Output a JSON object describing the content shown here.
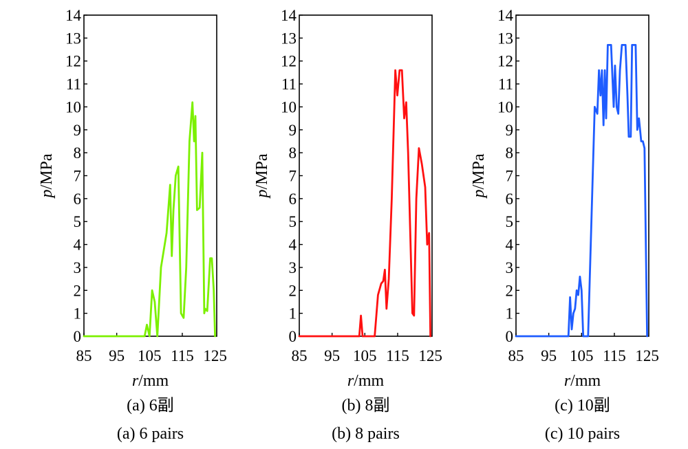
{
  "chart_data": [
    {
      "type": "line",
      "series": [
        {
          "color": "#7cf000",
          "x": [
            85,
            99,
            103.5,
            104.2,
            105,
            105.8,
            106.6,
            107.4,
            108.5,
            110.2,
            111.3,
            111.8,
            112.3,
            113,
            113.8,
            114.6,
            115.4,
            116.2,
            117.2,
            118.1,
            118.6,
            119,
            119.5,
            120.3,
            121.1,
            121.7,
            122,
            122.6,
            123.5,
            124,
            124.6,
            125
          ],
          "y": [
            0,
            0,
            0,
            0.5,
            0,
            2,
            1.5,
            0,
            3,
            4.5,
            6.6,
            3.5,
            5.5,
            7,
            7.4,
            1,
            0.8,
            3,
            8.5,
            10.2,
            8.5,
            9.6,
            5.5,
            5.6,
            8,
            1,
            1.2,
            1.1,
            3.4,
            3.4,
            2,
            0
          ]
        }
      ],
      "xticks": [
        "85",
        "95",
        "105",
        "115",
        "125"
      ],
      "yticks": [
        "0",
        "1",
        "2",
        "3",
        "4",
        "5",
        "6",
        "7",
        "8",
        "9",
        "10",
        "11",
        "12",
        "13",
        "14"
      ],
      "xlim": [
        85,
        125.5
      ],
      "ylim": [
        0,
        14
      ],
      "xlabel_italic": "r",
      "xlabel_unit": "/mm",
      "ylabel_italic": "p",
      "ylabel_unit": "/MPa",
      "caption_cn": "(a) 6副",
      "caption_en": "(a) 6 pairs"
    },
    {
      "type": "line",
      "series": [
        {
          "color": "#ff1010",
          "x": [
            85,
            100,
            103.3,
            103.8,
            104.3,
            105.5,
            106.4,
            108,
            109,
            110,
            110.6,
            111.1,
            111.6,
            112.3,
            113.2,
            114.3,
            114.9,
            115.6,
            116.3,
            117,
            117.6,
            118.2,
            119.5,
            120,
            120.7,
            121.5,
            122.4,
            123.4,
            124,
            124.6,
            125
          ],
          "y": [
            0,
            0,
            0,
            0.9,
            0,
            0,
            0,
            0,
            1.8,
            2.3,
            2.4,
            2.9,
            1.2,
            2.5,
            6,
            11.6,
            10.5,
            11.6,
            11.6,
            9.5,
            10.2,
            8,
            1,
            0.9,
            6,
            8.2,
            7.5,
            6.5,
            4,
            4.5,
            0
          ]
        }
      ],
      "xticks": [
        "85",
        "95",
        "105",
        "115",
        "125"
      ],
      "yticks": [
        "0",
        "1",
        "2",
        "3",
        "4",
        "5",
        "6",
        "7",
        "8",
        "9",
        "10",
        "11",
        "12",
        "13",
        "14"
      ],
      "xlim": [
        85,
        125.5
      ],
      "ylim": [
        0,
        14
      ],
      "xlabel_italic": "r",
      "xlabel_unit": "/mm",
      "ylabel_italic": "p",
      "ylabel_unit": "/MPa",
      "caption_cn": "(b) 8副",
      "caption_en": "(b) 8 pairs"
    },
    {
      "type": "line",
      "series": [
        {
          "color": "#1e5cff",
          "x": [
            85,
            98,
            100.5,
            101,
            101.5,
            102,
            102.5,
            103,
            103.5,
            104,
            104.5,
            105,
            105.5,
            106,
            106.5,
            107,
            108,
            109,
            109.8,
            110.3,
            110.8,
            111.2,
            111.7,
            112.1,
            112.5,
            113,
            113.5,
            114,
            114.8,
            115.2,
            115.7,
            116.2,
            116.7,
            117.3,
            117.8,
            118.4,
            119,
            119.4,
            120,
            120.4,
            121,
            121.5,
            122,
            122.5,
            123.2,
            123.7,
            124.2,
            124.7,
            125
          ],
          "y": [
            0,
            0,
            0,
            0,
            1.7,
            0.3,
            1,
            1.2,
            2,
            1.8,
            2.6,
            2,
            0,
            0,
            0,
            0,
            5,
            10,
            9.7,
            11.6,
            10.5,
            11.6,
            9.2,
            11.6,
            9.5,
            12.7,
            12.7,
            12.7,
            10,
            11.8,
            10,
            9.7,
            11.6,
            12.7,
            12.7,
            12.7,
            10.5,
            8.7,
            8.7,
            12.7,
            12.7,
            12.7,
            9,
            9.5,
            8.5,
            8.5,
            8.2,
            3,
            0
          ]
        }
      ],
      "xticks": [
        "85",
        "95",
        "105",
        "115",
        "125"
      ],
      "yticks": [
        "0",
        "1",
        "2",
        "3",
        "4",
        "5",
        "6",
        "7",
        "8",
        "9",
        "10",
        "11",
        "12",
        "13",
        "14"
      ],
      "xlim": [
        85,
        125.5
      ],
      "ylim": [
        0,
        14
      ],
      "xlabel_italic": "r",
      "xlabel_unit": "/mm",
      "ylabel_italic": "p",
      "ylabel_unit": "/MPa",
      "caption_cn": "(c) 10副",
      "caption_en": "(c) 10 pairs"
    }
  ]
}
